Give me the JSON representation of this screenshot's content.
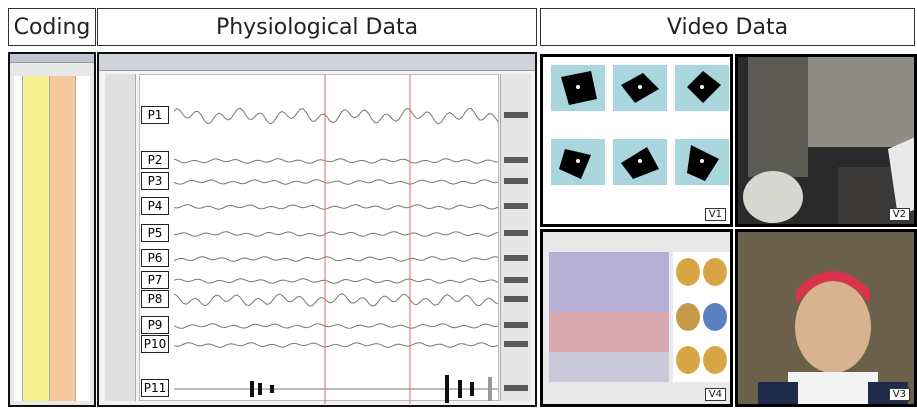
{
  "headers": {
    "coding": "Coding",
    "physio": "Physiological Data",
    "video": "Video Data"
  },
  "physio_labels": [
    "P1",
    "P2",
    "P3",
    "P4",
    "P5",
    "P6",
    "P7",
    "P8",
    "P9",
    "P10",
    "P11"
  ],
  "video_labels": [
    "V1",
    "V2",
    "V4",
    "V3"
  ]
}
